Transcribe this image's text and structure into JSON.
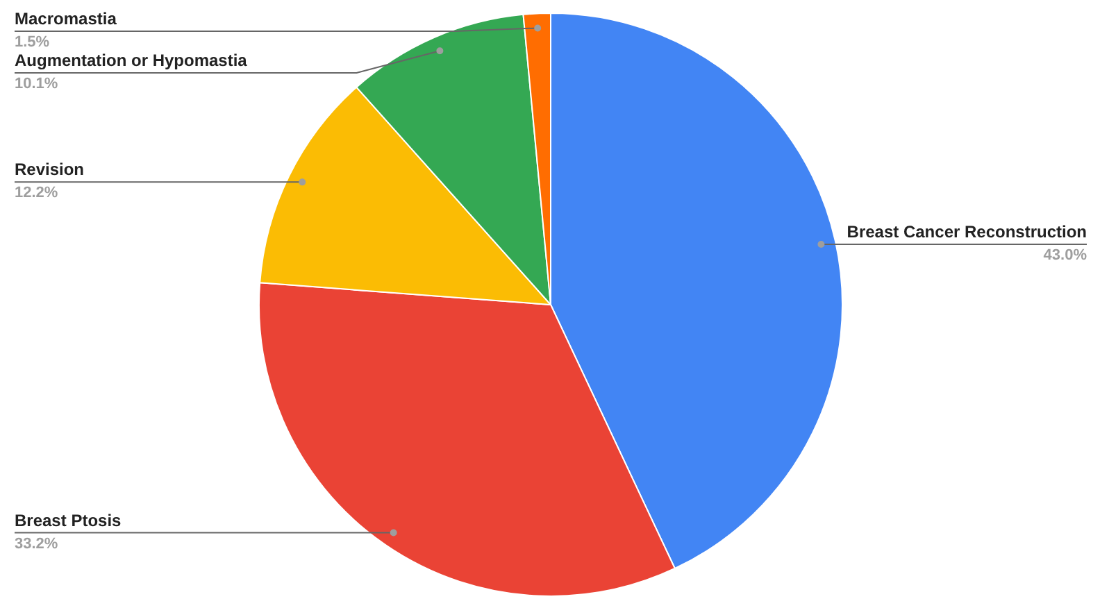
{
  "chart_data": {
    "type": "pie",
    "categories": [
      "Breast Cancer Reconstruction",
      "Breast Ptosis",
      "Revision",
      "Augmentation or Hypomastia",
      "Macromastia"
    ],
    "values": [
      43.0,
      33.2,
      12.2,
      10.1,
      1.5
    ],
    "colors": [
      "#4285f4",
      "#ea4335",
      "#fbbc04",
      "#34a853",
      "#ff6d01"
    ],
    "value_labels": [
      "43.0%",
      "33.2%",
      "12.2%",
      "10.1%",
      "1.5%"
    ]
  }
}
